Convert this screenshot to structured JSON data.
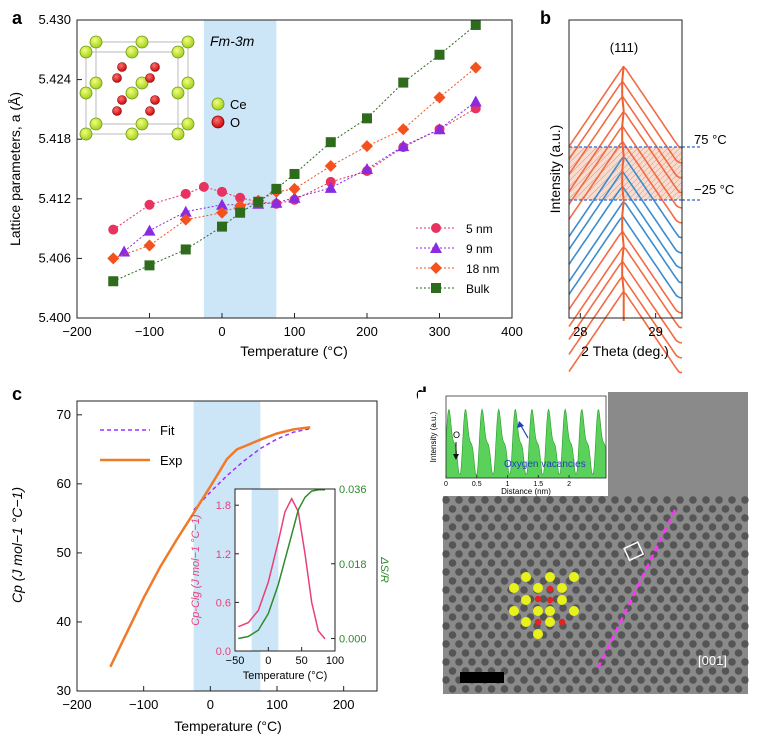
{
  "colors": {
    "nm5": "#e8325f",
    "nm9": "#8a2be2",
    "nm18": "#f4511e",
    "bulk": "#2e6b1c",
    "band": "#cde6f7",
    "warm": "#f26b43",
    "cool": "#3b8ccf",
    "fit": "#9b30ff",
    "exp": "#f07a2a",
    "pink": "#e8407a",
    "green": "#2d8a2d"
  },
  "panel_labels": [
    "a",
    "b",
    "c",
    "d"
  ],
  "chart_data": [
    {
      "panel": "a",
      "type": "line",
      "xlabel": "Temperature (°C)",
      "ylabel": "Lattice parameters, a (Å)",
      "xlim": [
        -200,
        400
      ],
      "ylim": [
        5.4,
        5.43
      ],
      "xticks": [
        "−200",
        "−100",
        "0",
        "100",
        "200",
        "300",
        "400"
      ],
      "yticks": [
        "5.400",
        "5.406",
        "5.412",
        "5.418",
        "5.424",
        "5.430"
      ],
      "shade": [
        -25,
        75
      ],
      "annotation": "Fm-3m",
      "inset_legend": [
        "Ce",
        "O"
      ],
      "legend_position": "bottom-right",
      "series": [
        {
          "name": "5 nm",
          "marker": "circle",
          "color": "#e8325f",
          "x": [
            -150,
            -100,
            -50,
            -25,
            0,
            25,
            50,
            75,
            100,
            150,
            200,
            250,
            300,
            350
          ],
          "y": [
            5.4089,
            5.4114,
            5.4125,
            5.4132,
            5.4127,
            5.4121,
            5.4117,
            5.4115,
            5.4119,
            5.4137,
            5.4148,
            5.4172,
            5.419,
            5.4211
          ]
        },
        {
          "name": "9 nm",
          "marker": "triangle",
          "color": "#8a2be2",
          "x": [
            -135,
            -100,
            -50,
            0,
            25,
            50,
            75,
            100,
            150,
            200,
            250,
            300,
            350
          ],
          "y": [
            5.4067,
            5.4088,
            5.4107,
            5.4114,
            5.4114,
            5.4115,
            5.4116,
            5.4121,
            5.4131,
            5.415,
            5.4173,
            5.419,
            5.4218
          ]
        },
        {
          "name": "18 nm",
          "marker": "diamond",
          "color": "#f4511e",
          "x": [
            -150,
            -100,
            -50,
            0,
            25,
            50,
            75,
            100,
            150,
            200,
            250,
            300,
            350
          ],
          "y": [
            5.406,
            5.4073,
            5.4099,
            5.4106,
            5.4113,
            5.4118,
            5.4127,
            5.413,
            5.4153,
            5.4173,
            5.419,
            5.4222,
            5.4252
          ]
        },
        {
          "name": "Bulk",
          "marker": "square",
          "color": "#2e6b1c",
          "x": [
            -150,
            -100,
            -50,
            0,
            25,
            50,
            75,
            100,
            150,
            200,
            250,
            300,
            350
          ],
          "y": [
            5.4037,
            5.4053,
            5.4069,
            5.4092,
            5.4106,
            5.4117,
            5.413,
            5.4145,
            5.4177,
            5.4201,
            5.4237,
            5.4265,
            5.4295
          ]
        }
      ]
    },
    {
      "panel": "b",
      "type": "line",
      "xlabel": "2 Theta (deg.)",
      "ylabel": "Intensity (a.u.)",
      "xlim": [
        27.85,
        29.35
      ],
      "xticks": [
        "28",
        "29"
      ],
      "peak_label": "(111)",
      "peak_center": 28.57,
      "annotations": [
        "75 °C",
        "−25 °C"
      ],
      "n_curves": 16,
      "cool_curve_indices": [
        6,
        7,
        8,
        9,
        10
      ]
    },
    {
      "panel": "c",
      "type": "line",
      "xlabel": "Temperature (°C)",
      "ylabel": "Cp (J mol−1 °C−1)",
      "xlim": [
        -200,
        250
      ],
      "ylim": [
        30,
        72
      ],
      "xticks": [
        "−200",
        "−100",
        "0",
        "100",
        "200"
      ],
      "yticks": [
        "30",
        "40",
        "50",
        "60",
        "70"
      ],
      "shade": [
        -25,
        75
      ],
      "legend_position": "top-left",
      "series": [
        {
          "name": "Fit",
          "style": "dashed",
          "color": "#9b30ff",
          "x": [
            -25,
            0,
            25,
            50,
            75,
            100,
            125,
            150
          ],
          "y": [
            56.2,
            58.8,
            61.2,
            63.3,
            65.1,
            66.5,
            67.5,
            68.0
          ]
        },
        {
          "name": "Exp",
          "style": "solid",
          "color": "#f07a2a",
          "x": [
            -150,
            -125,
            -100,
            -75,
            -50,
            -25,
            0,
            25,
            40,
            50,
            75,
            100,
            125,
            150
          ],
          "y": [
            33.5,
            38.5,
            43.5,
            48.0,
            52.0,
            55.8,
            59.6,
            63.6,
            65.0,
            65.4,
            66.4,
            67.3,
            67.9,
            68.2
          ]
        }
      ],
      "inset": {
        "xlabel": "Temperature (°C)",
        "ylabel_left": "Cp-Clg (J mol−1 °C−1)",
        "ylabel_right": "ΔS/R",
        "xlim": [
          -50,
          100
        ],
        "ylim_left": [
          0,
          2.0
        ],
        "ylim_right": [
          -0.003,
          0.036
        ],
        "xticks": [
          "−50",
          "0",
          "50",
          "100"
        ],
        "yticks_left": [
          "0.0",
          "0.6",
          "1.2",
          "1.8"
        ],
        "yticks_right": [
          "0.000",
          "0.018",
          "0.036"
        ],
        "shade": [
          -25,
          15
        ],
        "left_series": {
          "x": [
            -45,
            -30,
            -15,
            0,
            15,
            25,
            35,
            45,
            55,
            65,
            75,
            85
          ],
          "y": [
            0.3,
            0.35,
            0.5,
            0.85,
            1.35,
            1.72,
            1.88,
            1.72,
            1.2,
            0.6,
            0.25,
            0.15
          ]
        },
        "right_series": {
          "x": [
            -45,
            -30,
            -15,
            0,
            15,
            25,
            35,
            45,
            55,
            65,
            75,
            85
          ],
          "y": [
            0.0,
            0.0005,
            0.002,
            0.006,
            0.013,
            0.019,
            0.025,
            0.031,
            0.034,
            0.0355,
            0.0358,
            0.0358
          ]
        }
      }
    },
    {
      "panel": "d",
      "type": "line",
      "xlabel": "Distance (nm)",
      "ylabel": "Intensity (a.u.)",
      "xlim": [
        0,
        2.6
      ],
      "xticks": [
        "0",
        "0.5",
        "1",
        "1.5",
        "2"
      ],
      "labels": [
        "O",
        "Oxygen vacancies",
        "[001]"
      ]
    }
  ]
}
